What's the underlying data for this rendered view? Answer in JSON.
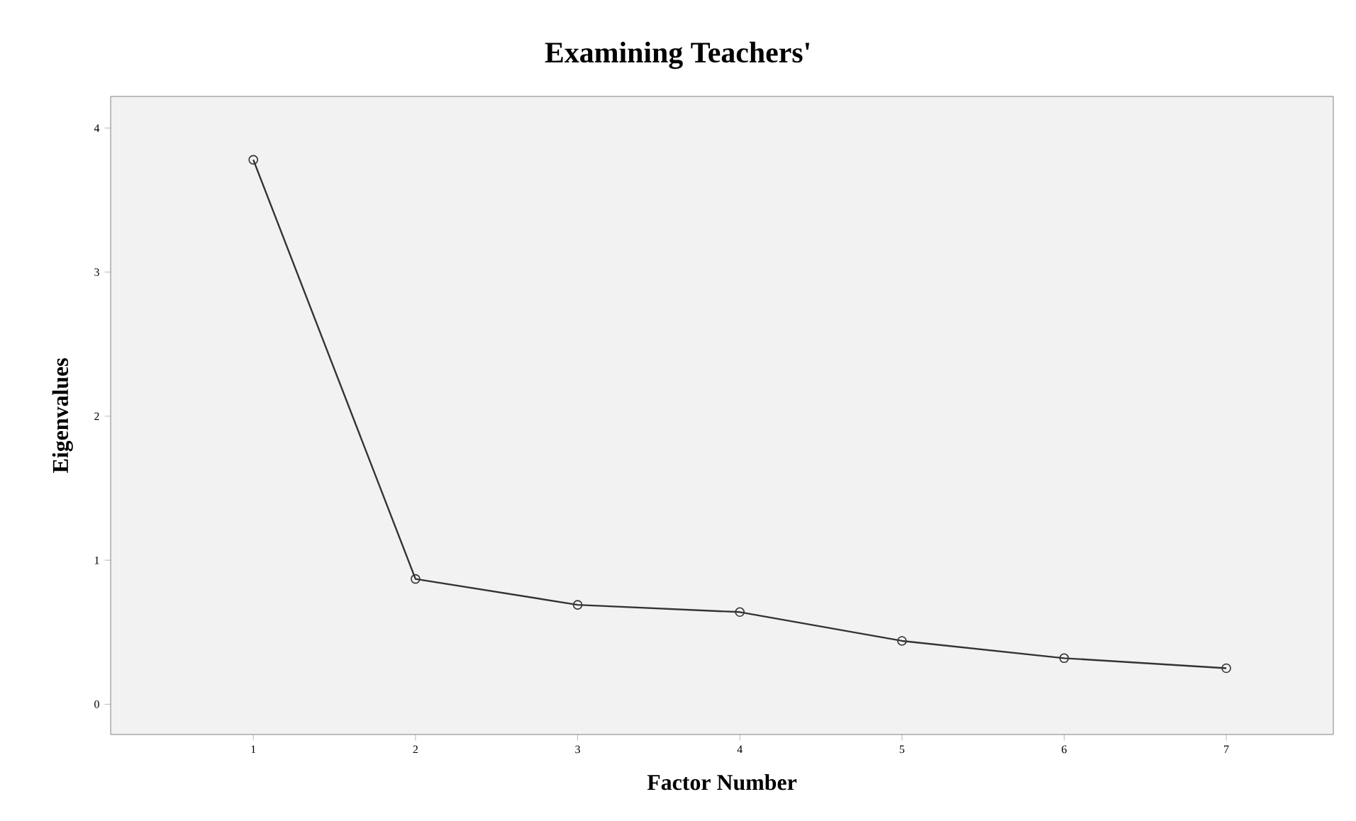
{
  "chart_data": {
    "type": "line",
    "title": "Examining Teachers'",
    "xlabel": "Factor Number",
    "ylabel": "Eigenvalues",
    "x": [
      1,
      2,
      3,
      4,
      5,
      6,
      7
    ],
    "values": [
      3.78,
      0.87,
      0.69,
      0.64,
      0.44,
      0.32,
      0.25
    ],
    "color": "#333333",
    "marker": "circle",
    "line_style": "solid",
    "xlim": [
      0.12,
      7.66
    ],
    "ylim": [
      -0.21,
      4.22
    ],
    "xticks": [
      1,
      2,
      3,
      4,
      5,
      6,
      7
    ],
    "yticks": [
      0,
      1,
      2,
      3,
      4
    ]
  }
}
